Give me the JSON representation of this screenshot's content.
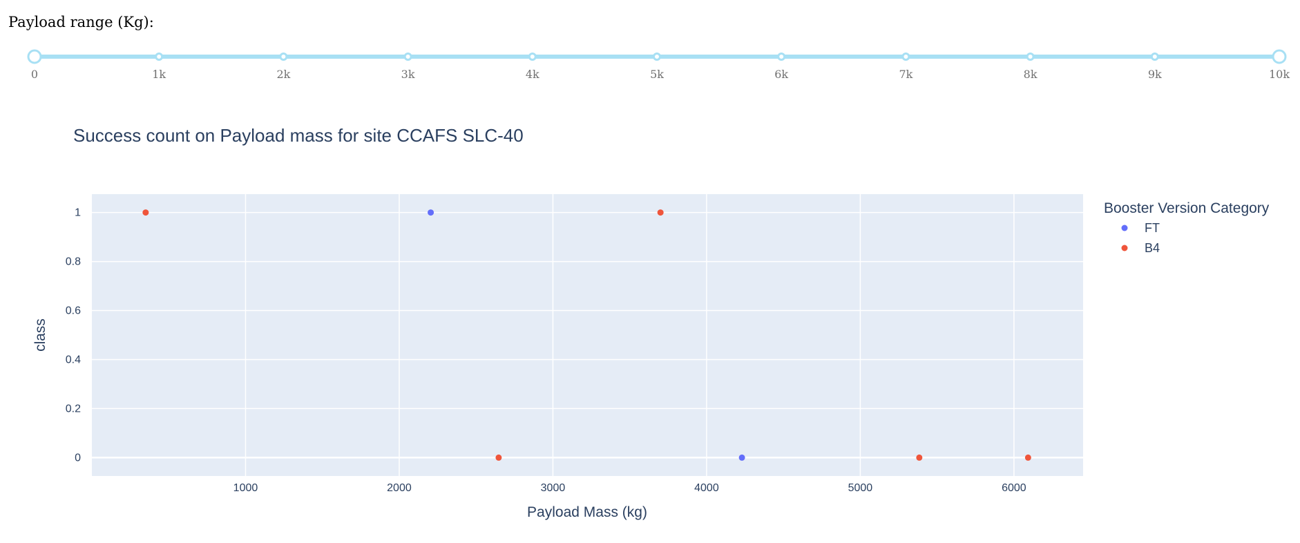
{
  "slider": {
    "label": "Payload range (Kg):",
    "min": 0,
    "max": 10000,
    "selected_range": [
      0,
      10000
    ],
    "marks": [
      "0",
      "1k",
      "2k",
      "3k",
      "4k",
      "5k",
      "6k",
      "7k",
      "8k",
      "9k",
      "10k"
    ],
    "track_color": "#a8e0f4"
  },
  "chart_data": {
    "type": "scatter",
    "title": "Success count on Payload mass for site CCAFS SLC-40",
    "xlabel": "Payload Mass (kg)",
    "ylabel": "class",
    "xlim": [
      0,
      6450
    ],
    "ylim": [
      -0.075,
      1.075
    ],
    "xticks": [
      1000,
      2000,
      3000,
      4000,
      5000,
      6000
    ],
    "xtick_labels": [
      "1000",
      "2000",
      "3000",
      "4000",
      "5000",
      "6000"
    ],
    "yticks": [
      0,
      0.2,
      0.4,
      0.6,
      0.8,
      1
    ],
    "ytick_labels": [
      "0",
      "0.2",
      "0.4",
      "0.6",
      "0.8",
      "1"
    ],
    "grid": true,
    "legend_title": "Booster Version Category",
    "legend_position": "right",
    "background_color": "#e5ecf6",
    "series": [
      {
        "name": "FT",
        "color": "#636efa",
        "x": [
          2205,
          4230
        ],
        "y": [
          1,
          0
        ]
      },
      {
        "name": "B4",
        "color": "#ef553b",
        "x": [
          350,
          3700,
          2647,
          5384,
          6092
        ],
        "y": [
          1,
          1,
          0,
          0,
          0
        ]
      }
    ]
  }
}
